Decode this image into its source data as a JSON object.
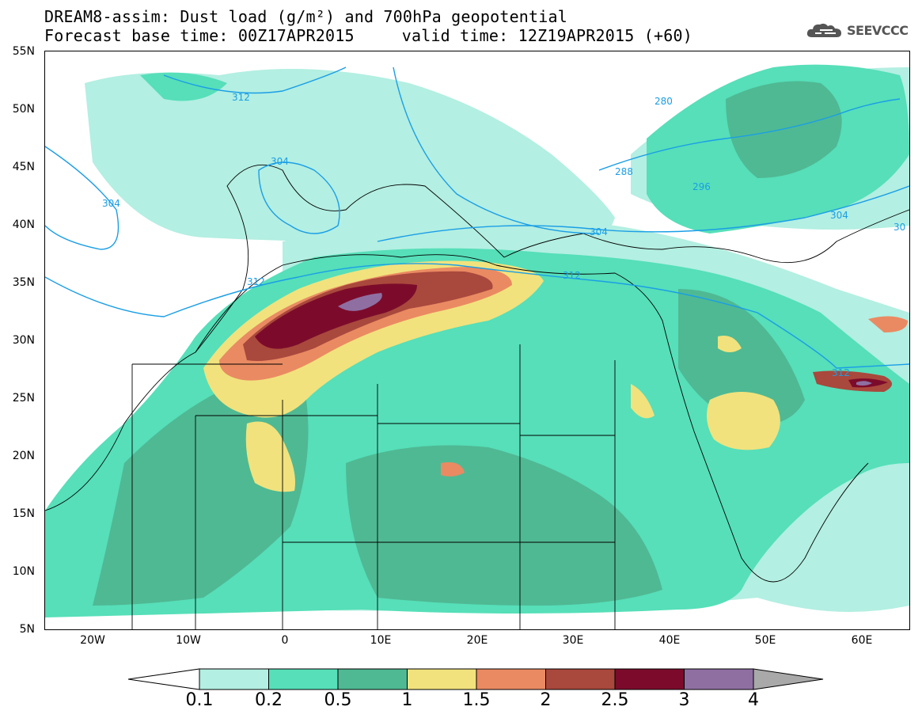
{
  "title": {
    "line1": "DREAM8-assim: Dust load (g/m²) and 700hPa geopotential",
    "forecast_base": "Forecast base time: 00Z17APR2015",
    "valid": "valid time: 12Z19APR2015 (+60)"
  },
  "logo": {
    "icon": "cloud-icon",
    "text": "SEEVCCC"
  },
  "map": {
    "lat_labels": [
      "55N",
      "50N",
      "45N",
      "40N",
      "35N",
      "30N",
      "25N",
      "20N",
      "15N",
      "10N",
      "5N"
    ],
    "lon_labels": [
      "20W",
      "10W",
      "0",
      "10E",
      "20E",
      "30E",
      "40E",
      "50E",
      "60E"
    ],
    "contour_labels": [
      "312",
      "304",
      "304",
      "312",
      "280",
      "288",
      "296",
      "304",
      "304",
      "312",
      "312",
      "30"
    ]
  },
  "colorbar": {
    "levels": [
      "0.1",
      "0.2",
      "0.5",
      "1",
      "1.5",
      "2",
      "2.5",
      "3",
      "4"
    ],
    "colors": [
      "#b3efe2",
      "#56dfb9",
      "#4fb993",
      "#f1e27d",
      "#ea8a62",
      "#a9483c",
      "#7c0b2b",
      "#8f6fa2",
      "#a9a9a9"
    ]
  },
  "colors": {
    "contour": "#1a9ee6",
    "border": "#000000"
  }
}
